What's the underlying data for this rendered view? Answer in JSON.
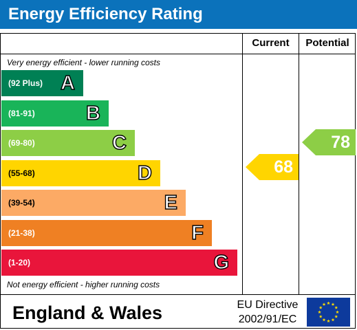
{
  "title": "Energy Efficiency Rating",
  "columns": {
    "current": "Current",
    "potential": "Potential"
  },
  "top_caption": "Very energy efficient - lower running costs",
  "bottom_caption": "Not energy efficient - higher running costs",
  "footer": {
    "region": "England & Wales",
    "directive_line1": "EU Directive",
    "directive_line2": "2002/91/EC",
    "flag_icon": "eu-flag-icon"
  },
  "colors": {
    "header": "#0b72bb",
    "A": "#008054",
    "B": "#19b459",
    "C": "#8dce46",
    "D": "#ffd500",
    "E": "#fcaa65",
    "F": "#ef8023",
    "G": "#e9153b"
  },
  "chart_data": {
    "type": "bar",
    "title": "Energy Efficiency Rating",
    "categories": [
      "A",
      "B",
      "C",
      "D",
      "E",
      "F",
      "G"
    ],
    "bands": [
      {
        "letter": "A",
        "range": "(92 Plus)",
        "min": 92,
        "max": 100
      },
      {
        "letter": "B",
        "range": "(81-91)",
        "min": 81,
        "max": 91
      },
      {
        "letter": "C",
        "range": "(69-80)",
        "min": 69,
        "max": 80
      },
      {
        "letter": "D",
        "range": "(55-68)",
        "min": 55,
        "max": 68
      },
      {
        "letter": "E",
        "range": "(39-54)",
        "min": 39,
        "max": 54
      },
      {
        "letter": "F",
        "range": "(21-38)",
        "min": 21,
        "max": 38
      },
      {
        "letter": "G",
        "range": "(1-20)",
        "min": 1,
        "max": 20
      }
    ],
    "series": [
      {
        "name": "Current",
        "value": 68,
        "band": "D"
      },
      {
        "name": "Potential",
        "value": 78,
        "band": "C"
      }
    ]
  }
}
